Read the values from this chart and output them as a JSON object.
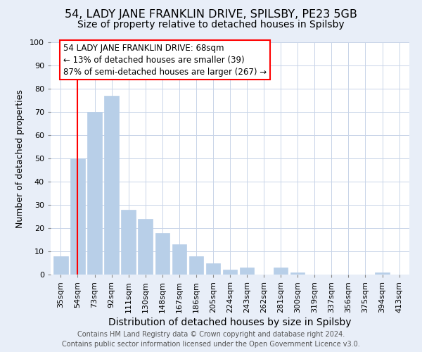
{
  "title": "54, LADY JANE FRANKLIN DRIVE, SPILSBY, PE23 5GB",
  "subtitle": "Size of property relative to detached houses in Spilsby",
  "xlabel": "Distribution of detached houses by size in Spilsby",
  "ylabel": "Number of detached properties",
  "footer_line1": "Contains HM Land Registry data © Crown copyright and database right 2024.",
  "footer_line2": "Contains public sector information licensed under the Open Government Licence v3.0.",
  "bar_labels": [
    "35sqm",
    "54sqm",
    "73sqm",
    "92sqm",
    "111sqm",
    "130sqm",
    "148sqm",
    "167sqm",
    "186sqm",
    "205sqm",
    "224sqm",
    "243sqm",
    "262sqm",
    "281sqm",
    "300sqm",
    "319sqm",
    "337sqm",
    "356sqm",
    "375sqm",
    "394sqm",
    "413sqm"
  ],
  "bar_values": [
    8,
    50,
    70,
    77,
    28,
    24,
    18,
    13,
    8,
    5,
    2,
    3,
    0,
    3,
    1,
    0,
    0,
    0,
    0,
    1,
    0
  ],
  "bar_color": "#b8cfe8",
  "bar_edge_color": "#b8cfe8",
  "reference_line_x": 1,
  "reference_line_color": "red",
  "annotation_text": "54 LADY JANE FRANKLIN DRIVE: 68sqm\n← 13% of detached houses are smaller (39)\n87% of semi-detached houses are larger (267) →",
  "annotation_box_color": "white",
  "annotation_box_edge_color": "red",
  "ylim": [
    0,
    100
  ],
  "background_color": "#e8eef8",
  "plot_background_color": "white",
  "grid_color": "#c8d4e8",
  "title_fontsize": 11.5,
  "subtitle_fontsize": 10,
  "xlabel_fontsize": 10,
  "ylabel_fontsize": 9,
  "tick_fontsize": 8,
  "footer_fontsize": 7,
  "annotation_fontsize": 8.5
}
